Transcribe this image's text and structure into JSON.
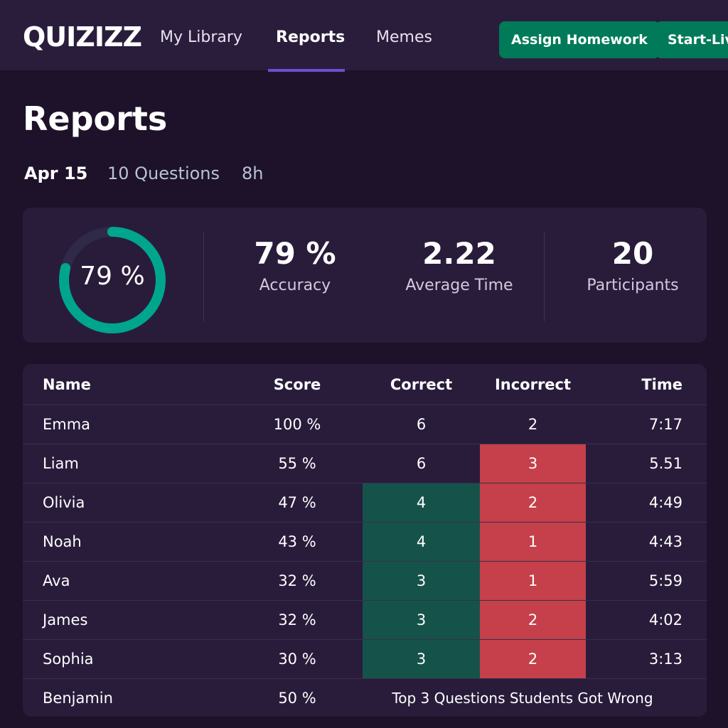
{
  "header": {
    "logo": "QUIZIZZ",
    "nav": [
      {
        "label": "My Library",
        "active": false
      },
      {
        "label": "Reports",
        "active": true
      },
      {
        "label": "Memes",
        "active": false
      }
    ],
    "assign_label": "Assign Homework",
    "start_label": "Start-Live"
  },
  "page": {
    "title": "Reports",
    "date": "Apr 15",
    "questions": "10 Questions",
    "duration": "8h"
  },
  "stats": {
    "ring_value": 79,
    "ring_label": "79 %",
    "accuracy_value": "79 %",
    "accuracy_label": "Accuracy",
    "avg_time_value": "2.22",
    "avg_time_label": "Average Time",
    "participants_value": "20",
    "participants_label": "Participants",
    "ring_color": "#00a58e",
    "ring_track": "#2e2a48"
  },
  "table": {
    "columns": [
      "Name",
      "Score",
      "Correct",
      "Incorrect",
      "Time"
    ],
    "rows": [
      {
        "name": "Emma",
        "score": "100 %",
        "correct": "6",
        "incorrect": "2",
        "time": "7:17",
        "hl_correct": false,
        "hl_incorrect": false
      },
      {
        "name": "Liam",
        "score": "55 %",
        "correct": "6",
        "incorrect": "3",
        "time": "5.51",
        "hl_correct": false,
        "hl_incorrect": true
      },
      {
        "name": "Olivia",
        "score": "47 %",
        "correct": "4",
        "incorrect": "2",
        "time": "4:49",
        "hl_correct": true,
        "hl_incorrect": true
      },
      {
        "name": "Noah",
        "score": "43 %",
        "correct": "4",
        "incorrect": "1",
        "time": "4:43",
        "hl_correct": true,
        "hl_incorrect": true
      },
      {
        "name": "Ava",
        "score": "32 %",
        "correct": "3",
        "incorrect": "1",
        "time": "5:59",
        "hl_correct": true,
        "hl_incorrect": true
      },
      {
        "name": "James",
        "score": "32 %",
        "correct": "3",
        "incorrect": "2",
        "time": "4:02",
        "hl_correct": true,
        "hl_incorrect": true
      },
      {
        "name": "Sophia",
        "score": "30 %",
        "correct": "3",
        "incorrect": "2",
        "time": "3:13",
        "hl_correct": true,
        "hl_incorrect": true
      }
    ],
    "last_row": {
      "name": "Benjamin",
      "score": "50 %",
      "note": "Top 3 Questions Students Got Wrong"
    },
    "colors": {
      "correct": "#15534a",
      "incorrect": "#c5404a"
    }
  }
}
